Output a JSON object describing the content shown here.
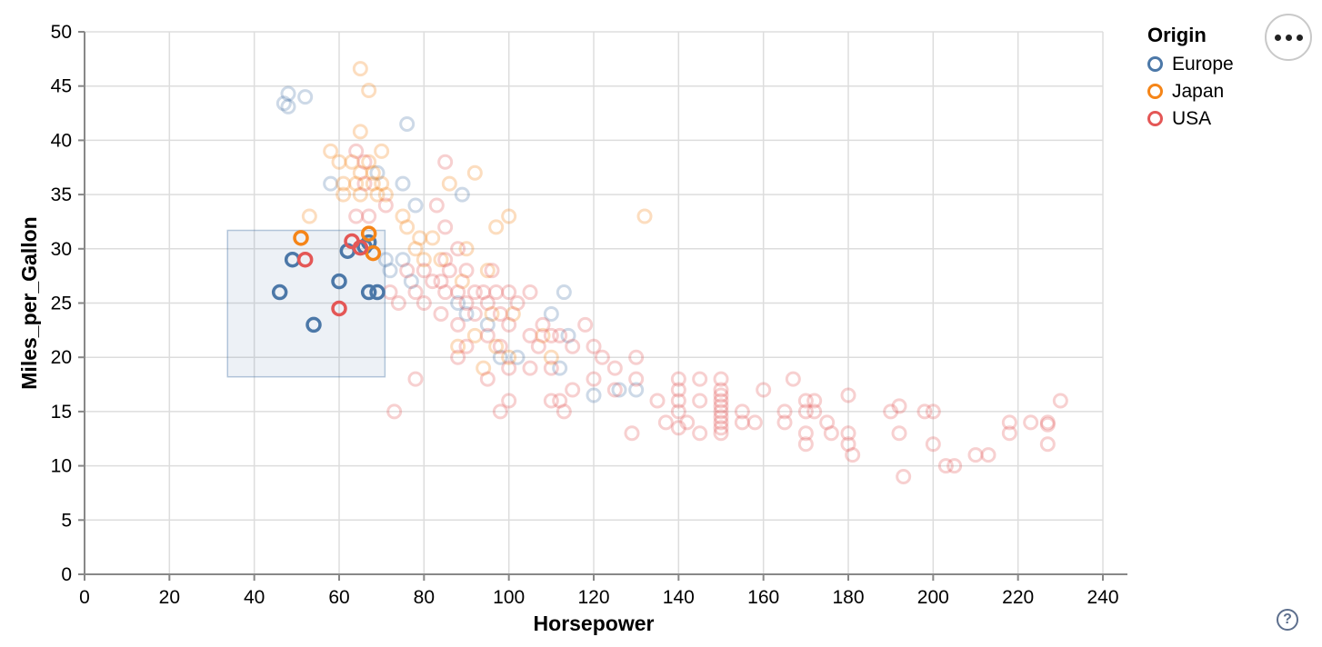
{
  "legend": {
    "title": "Origin",
    "items": [
      {
        "label": "Europe",
        "color": "#4c78a8"
      },
      {
        "label": "Japan",
        "color": "#f58518"
      },
      {
        "label": "USA",
        "color": "#e45756"
      }
    ]
  },
  "controls": {
    "menu_button_tooltip": "actions-menu",
    "help_glyph": "?"
  },
  "chart_data": {
    "type": "scatter",
    "title": "",
    "xlabel": "Horsepower",
    "ylabel": "Miles_per_Gallon",
    "xlim": [
      0,
      240
    ],
    "ylim": [
      0,
      50
    ],
    "xstep": 20,
    "ystep": 5,
    "grid": true,
    "legend_position": "top-right",
    "brush": {
      "x": [
        33.7,
        70.8
      ],
      "y": [
        18.2,
        31.7
      ]
    },
    "style": {
      "grid_color": "#dddddd",
      "axis_color": "#888888",
      "label_color": "#000000",
      "point_radius": 7,
      "point_stroke_width": 3,
      "unselected_opacity": 0.28,
      "brush_fill": "rgba(76,120,168,0.10)",
      "brush_stroke": "rgba(76,120,168,0.40)"
    },
    "series": [
      {
        "name": "Europe",
        "color": "#4c78a8",
        "selected": [
          [
            46,
            26
          ],
          [
            49,
            29
          ],
          [
            54,
            23
          ],
          [
            60,
            27
          ],
          [
            67,
            26
          ],
          [
            69,
            26
          ],
          [
            62,
            29.8
          ],
          [
            66,
            30.2
          ],
          [
            67,
            30.6
          ]
        ],
        "points": [
          [
            48,
            43.1
          ],
          [
            48,
            44.3
          ],
          [
            47,
            43.4
          ],
          [
            52,
            44
          ],
          [
            76,
            41.5
          ],
          [
            58,
            36
          ],
          [
            75,
            36
          ],
          [
            69,
            37
          ],
          [
            89,
            35
          ],
          [
            78,
            34
          ],
          [
            72,
            28
          ],
          [
            75,
            29
          ],
          [
            77,
            27
          ],
          [
            71,
            29
          ],
          [
            90,
            24
          ],
          [
            88,
            25
          ],
          [
            95,
            23
          ],
          [
            102,
            20
          ],
          [
            98,
            20
          ],
          [
            110,
            24
          ],
          [
            114,
            22
          ],
          [
            112,
            19
          ],
          [
            113,
            26
          ],
          [
            120,
            16.5
          ],
          [
            126,
            17
          ],
          [
            130,
            17
          ]
        ]
      },
      {
        "name": "Japan",
        "color": "#f58518",
        "selected": [
          [
            51,
            31
          ],
          [
            67,
            31.4
          ],
          [
            68,
            29.6
          ]
        ],
        "points": [
          [
            65,
            46.6
          ],
          [
            67,
            44.6
          ],
          [
            65,
            40.8
          ],
          [
            70,
            39
          ],
          [
            58,
            39
          ],
          [
            60,
            38
          ],
          [
            63,
            38
          ],
          [
            67,
            38
          ],
          [
            65,
            37
          ],
          [
            68,
            37
          ],
          [
            61,
            36
          ],
          [
            64,
            36
          ],
          [
            68,
            36
          ],
          [
            70,
            36
          ],
          [
            61,
            35
          ],
          [
            65,
            35
          ],
          [
            69,
            35
          ],
          [
            71,
            35
          ],
          [
            53,
            33
          ],
          [
            86,
            36
          ],
          [
            92,
            37
          ],
          [
            75,
            33
          ],
          [
            76,
            32
          ],
          [
            79,
            31
          ],
          [
            82,
            31
          ],
          [
            78,
            30
          ],
          [
            80,
            29
          ],
          [
            84,
            29
          ],
          [
            90,
            30
          ],
          [
            97,
            32
          ],
          [
            100,
            33
          ],
          [
            132,
            33
          ],
          [
            89,
            27
          ],
          [
            95,
            28
          ],
          [
            96,
            24
          ],
          [
            101,
            24
          ],
          [
            108,
            22
          ],
          [
            110,
            20
          ],
          [
            100,
            20
          ],
          [
            97,
            21
          ],
          [
            92,
            22
          ],
          [
            88,
            21
          ],
          [
            94,
            19
          ]
        ]
      },
      {
        "name": "USA",
        "color": "#e45756",
        "selected": [
          [
            52,
            29
          ],
          [
            60,
            24.5
          ],
          [
            63,
            30.7
          ],
          [
            65,
            30.1
          ]
        ],
        "points": [
          [
            64,
            39
          ],
          [
            66,
            38
          ],
          [
            66,
            36
          ],
          [
            71,
            34
          ],
          [
            64,
            33
          ],
          [
            67,
            33
          ],
          [
            85,
            38
          ],
          [
            83,
            34
          ],
          [
            85,
            32
          ],
          [
            72,
            26
          ],
          [
            74,
            25
          ],
          [
            76,
            28
          ],
          [
            78,
            26
          ],
          [
            78,
            18
          ],
          [
            80,
            28
          ],
          [
            80,
            25
          ],
          [
            82,
            27
          ],
          [
            84,
            27
          ],
          [
            84,
            24
          ],
          [
            85,
            29
          ],
          [
            85,
            26
          ],
          [
            86,
            28
          ],
          [
            88,
            30
          ],
          [
            88,
            26
          ],
          [
            88,
            23
          ],
          [
            88,
            20
          ],
          [
            90,
            28
          ],
          [
            90,
            25
          ],
          [
            90,
            21
          ],
          [
            92,
            26
          ],
          [
            92,
            24
          ],
          [
            94,
            26
          ],
          [
            95,
            25
          ],
          [
            95,
            22
          ],
          [
            95,
            18
          ],
          [
            96,
            28
          ],
          [
            97,
            26
          ],
          [
            98,
            24
          ],
          [
            98,
            21
          ],
          [
            98,
            15
          ],
          [
            100,
            26
          ],
          [
            100,
            23
          ],
          [
            100,
            19
          ],
          [
            100,
            16
          ],
          [
            102,
            25
          ],
          [
            105,
            26
          ],
          [
            105,
            22
          ],
          [
            105,
            19
          ],
          [
            107,
            21
          ],
          [
            108,
            23
          ],
          [
            110,
            22
          ],
          [
            110,
            19
          ],
          [
            110,
            16
          ],
          [
            112,
            22
          ],
          [
            112,
            16
          ],
          [
            113,
            15
          ],
          [
            115,
            21
          ],
          [
            115,
            17
          ],
          [
            118,
            23
          ],
          [
            120,
            21
          ],
          [
            120,
            18
          ],
          [
            122,
            20
          ],
          [
            125,
            19
          ],
          [
            125,
            17
          ],
          [
            129,
            13
          ],
          [
            73,
            15
          ],
          [
            130,
            20
          ],
          [
            130,
            18
          ],
          [
            135,
            16
          ],
          [
            137,
            14
          ],
          [
            140,
            18
          ],
          [
            140,
            17
          ],
          [
            140,
            16
          ],
          [
            140,
            15
          ],
          [
            140,
            13.5
          ],
          [
            142,
            14
          ],
          [
            145,
            18
          ],
          [
            145,
            16
          ],
          [
            145,
            13
          ],
          [
            150,
            18
          ],
          [
            150,
            17
          ],
          [
            150,
            16.5
          ],
          [
            150,
            16
          ],
          [
            150,
            15.5
          ],
          [
            150,
            15
          ],
          [
            150,
            14.5
          ],
          [
            150,
            14
          ],
          [
            150,
            13.5
          ],
          [
            150,
            13
          ],
          [
            155,
            15
          ],
          [
            155,
            14
          ],
          [
            158,
            14
          ],
          [
            160,
            17
          ],
          [
            165,
            15
          ],
          [
            165,
            14
          ],
          [
            167,
            18
          ],
          [
            170,
            16
          ],
          [
            170,
            15
          ],
          [
            170,
            13
          ],
          [
            170,
            12
          ],
          [
            172,
            16
          ],
          [
            172,
            15
          ],
          [
            175,
            14
          ],
          [
            176,
            13
          ],
          [
            180,
            16.5
          ],
          [
            180,
            13
          ],
          [
            180,
            12
          ],
          [
            181,
            11
          ],
          [
            190,
            15
          ],
          [
            192,
            15.5
          ],
          [
            192,
            13
          ],
          [
            193,
            9
          ],
          [
            198,
            15
          ],
          [
            200,
            15
          ],
          [
            200,
            12
          ],
          [
            203,
            10
          ],
          [
            205,
            10
          ],
          [
            210,
            11
          ],
          [
            213,
            11
          ],
          [
            218,
            14
          ],
          [
            218,
            13
          ],
          [
            223,
            14
          ],
          [
            227,
            14
          ],
          [
            227,
            13.8
          ],
          [
            227,
            12
          ],
          [
            230,
            16
          ]
        ]
      }
    ]
  }
}
